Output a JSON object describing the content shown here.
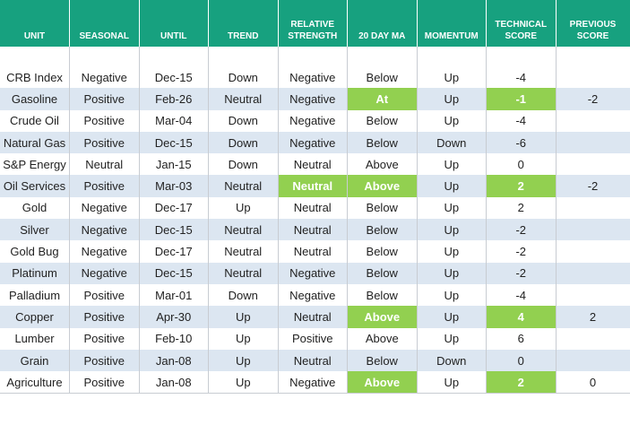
{
  "table": {
    "header": [
      "UNIT",
      "SEASONAL",
      "UNTIL",
      "TREND",
      "RELATIVE STRENGTH",
      "20 DAY MA",
      "MOMENTUM",
      "TECHNICAL SCORE",
      "PREVIOUS SCORE"
    ],
    "rows": [
      [
        "CRB Index",
        "Negative",
        "Dec-15",
        "Down",
        "Negative",
        "Below",
        "Up",
        "-4",
        null
      ],
      [
        "Gasoline",
        "Positive",
        "Feb-26",
        "Neutral",
        "Negative",
        {
          "text": "At",
          "highlight": true
        },
        "Up",
        {
          "text": "-1",
          "highlight": true
        },
        "-2"
      ],
      [
        "Crude Oil",
        "Positive",
        "Mar-04",
        "Down",
        "Negative",
        "Below",
        "Up",
        "-4",
        null
      ],
      [
        "Natural Gas",
        "Positive",
        "Dec-15",
        "Down",
        "Negative",
        "Below",
        "Down",
        "-6",
        null
      ],
      [
        "S&P Energy",
        "Neutral",
        "Jan-15",
        "Down",
        "Neutral",
        "Above",
        "Up",
        "0",
        null
      ],
      [
        "Oil Services",
        "Positive",
        "Mar-03",
        "Neutral",
        {
          "text": "Neutral",
          "highlight": true
        },
        {
          "text": "Above",
          "highlight": true
        },
        "Up",
        {
          "text": "2",
          "highlight": true
        },
        "-2"
      ],
      [
        "Gold",
        "Negative",
        "Dec-17",
        "Up",
        "Neutral",
        "Below",
        "Up",
        "2",
        null
      ],
      [
        "Silver",
        "Negative",
        "Dec-15",
        "Neutral",
        "Neutral",
        "Below",
        "Up",
        "-2",
        null
      ],
      [
        "Gold Bug",
        "Negative",
        "Dec-17",
        "Neutral",
        "Neutral",
        "Below",
        "Up",
        "-2",
        null
      ],
      [
        "Platinum",
        "Negative",
        "Dec-15",
        "Neutral",
        "Negative",
        "Below",
        "Up",
        "-2",
        null
      ],
      [
        "Palladium",
        "Positive",
        "Mar-01",
        "Down",
        "Negative",
        "Below",
        "Up",
        "-4",
        null
      ],
      [
        "Copper",
        "Positive",
        "Apr-30",
        "Up",
        "Neutral",
        {
          "text": "Above",
          "highlight": true
        },
        "Up",
        {
          "text": "4",
          "highlight": true
        },
        "2"
      ],
      [
        "Lumber",
        "Positive",
        "Feb-10",
        "Up",
        "Positive",
        "Above",
        "Up",
        "6",
        null
      ],
      [
        "Grain",
        "Positive",
        "Jan-08",
        "Up",
        "Neutral",
        "Below",
        "Down",
        "0",
        null
      ],
      [
        "Agriculture",
        "Positive",
        "Jan-08",
        "Up",
        "Negative",
        {
          "text": "Above",
          "highlight": true
        },
        "Up",
        {
          "text": "2",
          "highlight": true
        },
        "0"
      ]
    ]
  }
}
